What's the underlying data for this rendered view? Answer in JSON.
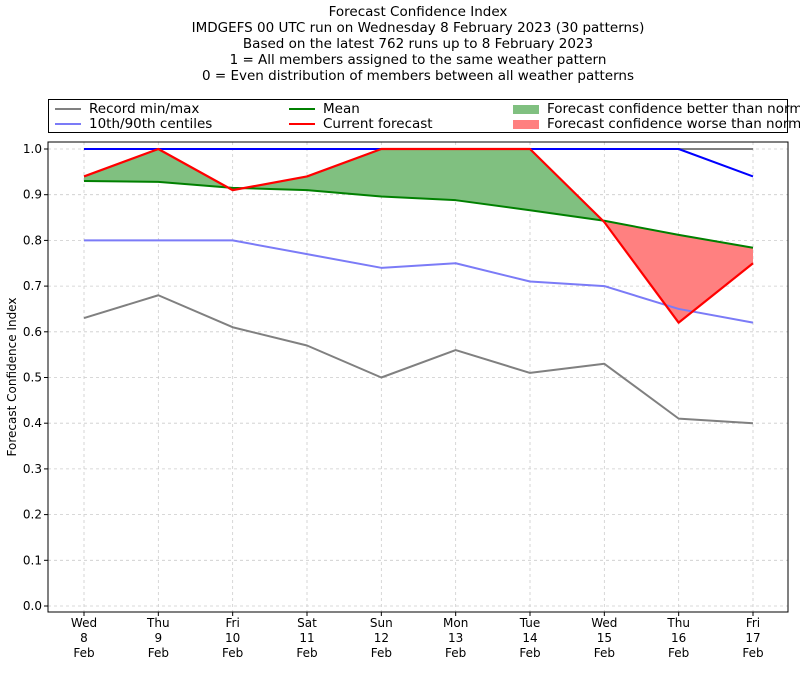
{
  "chart_data": {
    "type": "line",
    "title_lines": [
      "Forecast Confidence Index",
      "IMDGEFS 00 UTC run on Wednesday 8 February 2023 (30 patterns)",
      "Based on the latest 762 runs up to 8 February 2023",
      "1 = All members assigned to the same weather pattern",
      "0 = Even distribution of members between all weather patterns"
    ],
    "xlabel": "",
    "ylabel": "Forecast Confidence Index",
    "ylim": [
      0,
      1.0
    ],
    "y_ticks": [
      "0.0",
      "0.1",
      "0.2",
      "0.3",
      "0.4",
      "0.5",
      "0.6",
      "0.7",
      "0.8",
      "0.9",
      "1.0"
    ],
    "grid": true,
    "categories": [
      [
        "Wed",
        "8",
        "Feb"
      ],
      [
        "Thu",
        "9",
        "Feb"
      ],
      [
        "Fri",
        "10",
        "Feb"
      ],
      [
        "Sat",
        "11",
        "Feb"
      ],
      [
        "Sun",
        "12",
        "Feb"
      ],
      [
        "Mon",
        "13",
        "Feb"
      ],
      [
        "Tue",
        "14",
        "Feb"
      ],
      [
        "Wed",
        "15",
        "Feb"
      ],
      [
        "Thu",
        "16",
        "Feb"
      ],
      [
        "Fri",
        "17",
        "Feb"
      ]
    ],
    "legend_position": "top",
    "legend": [
      {
        "label": "Record min/max",
        "kind": "line",
        "color": "#808080"
      },
      {
        "label": "10th/90th centiles",
        "kind": "line",
        "color": "#7b7bf7"
      },
      {
        "label": "Mean",
        "kind": "line",
        "color": "#008000"
      },
      {
        "label": "Current forecast",
        "kind": "line",
        "color": "#ff0000"
      },
      {
        "label": "Forecast confidence better than normal",
        "kind": "patch",
        "color": "#80c080"
      },
      {
        "label": "Forecast confidence worse than normal",
        "kind": "patch",
        "color": "#ff8080"
      }
    ],
    "series": [
      {
        "name": "Record min/max",
        "role": "record_min",
        "color": "#808080",
        "values": [
          0.63,
          0.68,
          0.61,
          0.57,
          0.5,
          0.56,
          0.51,
          0.53,
          0.41,
          0.4
        ]
      },
      {
        "name": "Record min/max",
        "role": "record_max",
        "color": "#808080",
        "values": [
          1.0,
          1.0,
          1.0,
          1.0,
          1.0,
          1.0,
          1.0,
          1.0,
          1.0,
          1.0
        ]
      },
      {
        "name": "10th/90th centiles",
        "role": "p10",
        "color": "#7b7bf7",
        "values": [
          0.8,
          0.8,
          0.8,
          0.77,
          0.74,
          0.75,
          0.71,
          0.7,
          0.65,
          0.62
        ]
      },
      {
        "name": "10th/90th centiles",
        "role": "p90",
        "color": "#0000ff",
        "values": [
          1.0,
          1.0,
          1.0,
          1.0,
          1.0,
          1.0,
          1.0,
          1.0,
          1.0,
          0.94
        ]
      },
      {
        "name": "Mean",
        "role": "mean",
        "color": "#008000",
        "values": [
          0.93,
          0.928,
          0.915,
          0.91,
          0.896,
          0.888,
          0.866,
          0.843,
          0.812,
          0.784
        ]
      },
      {
        "name": "Current forecast",
        "role": "current",
        "color": "#ff0000",
        "values": [
          0.94,
          1.0,
          0.91,
          0.94,
          1.0,
          1.0,
          1.0,
          0.84,
          0.62,
          0.75
        ]
      }
    ],
    "colors": {
      "better_fill": "#80c080",
      "worse_fill": "#ff8080",
      "grid": "#cccccc"
    }
  }
}
